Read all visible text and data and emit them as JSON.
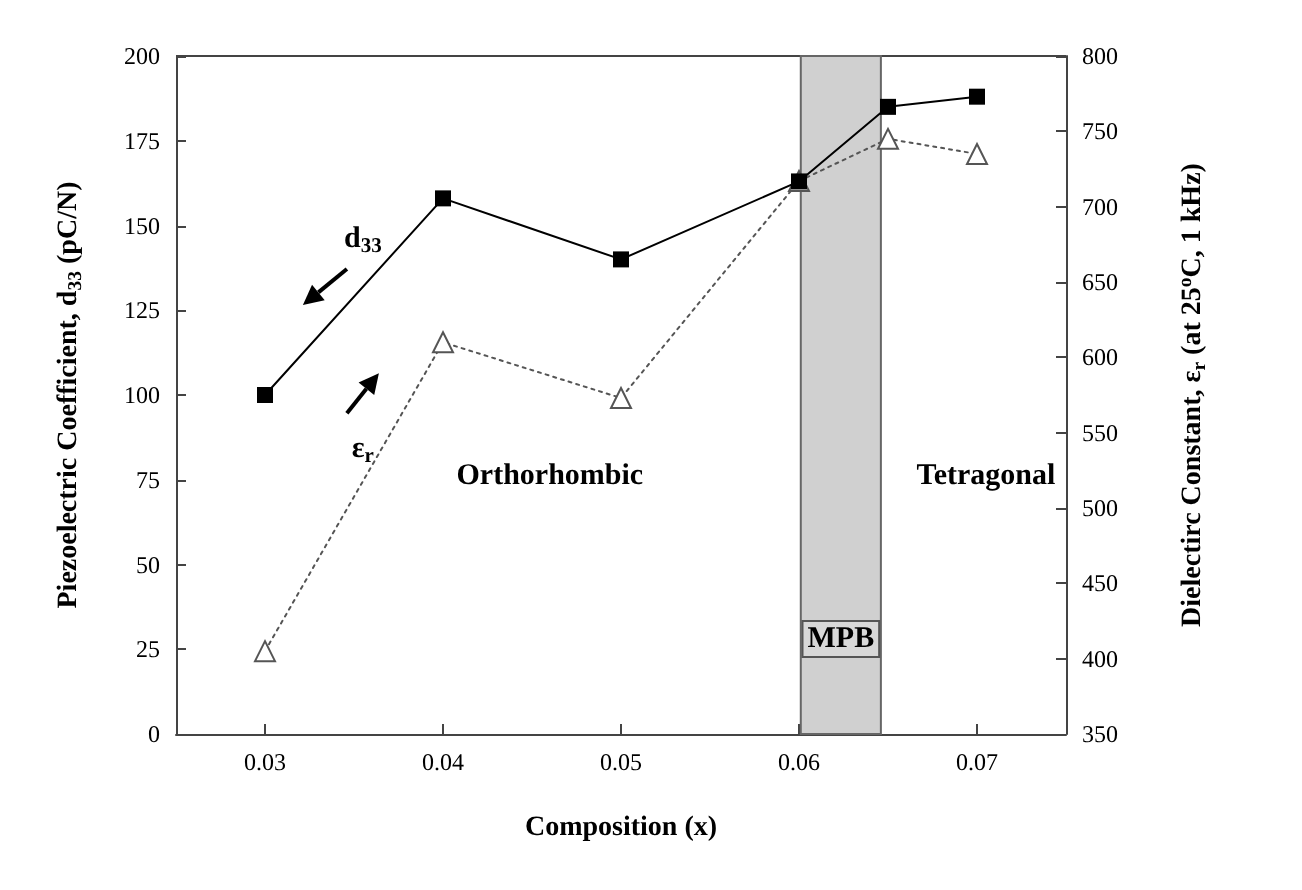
{
  "chart_data": {
    "type": "line",
    "xlabel": "Composition (x)",
    "ylabel": "Piezoelectric Coefficient, d$_{33}$ (pC/N)",
    "y2label": "Dielectirc Constant, ε$_{r}$ (at 25$^{o}$C, 1 kHz)",
    "x": [
      0.03,
      0.04,
      0.05,
      0.06,
      0.065,
      0.07
    ],
    "series": [
      {
        "color": "#000000",
        "values": [
          100,
          158,
          140,
          163,
          185,
          188
        ],
        "marker": "square",
        "line_style": "solid"
      },
      {
        "color": "#555555",
        "values": [
          405,
          610,
          573,
          717,
          745,
          735
        ],
        "marker": "triangle",
        "line_style": "dotted",
        "axis": "y2"
      }
    ],
    "xlim": [
      0.025,
      0.075
    ],
    "xticks": [
      0.03,
      0.04,
      0.05,
      0.06,
      0.07
    ],
    "ylim": [
      0,
      200
    ],
    "yticks": [
      0,
      25,
      50,
      75,
      100,
      125,
      150,
      175,
      200
    ],
    "y2lim": [
      350,
      800
    ],
    "y2ticks": [
      350,
      400,
      450,
      500,
      550,
      600,
      650,
      700,
      750,
      800
    ],
    "bands": [
      {
        "axis": "x",
        "from": 0.0601,
        "to": 0.0646,
        "label": "MPB",
        "color": "#d0d0d0"
      }
    ],
    "annotations": [
      "d$_{33}$",
      "ε$_{r}$",
      "Orthorhombic",
      "Tetragonal"
    ],
    "grid": false
  }
}
